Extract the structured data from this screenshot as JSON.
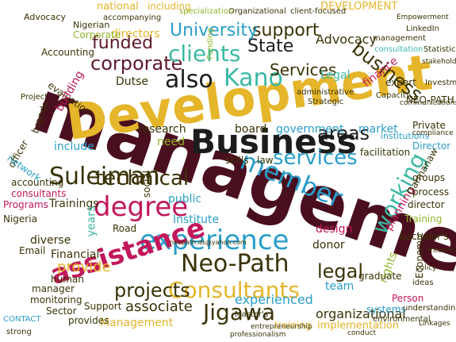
{
  "image": {
    "type": "word cloud",
    "palette": [
      "#e5b52a",
      "#3a3306",
      "#5e1a2a",
      "#c2185b",
      "#2a9ec9",
      "#3cb9a3",
      "#8fb32a",
      "#1c1c1c"
    ]
  },
  "words": [
    "management",
    "Development",
    "Business",
    "experience",
    "Neo-Path",
    "Consultants",
    "assistance",
    "member",
    "degree",
    "technical",
    "corporate",
    "Kano",
    "services",
    "State",
    "clients",
    "also",
    "Suleiman",
    "Jigawa",
    "projects",
    "working",
    "business",
    "legal",
    "areas",
    "support",
    "University",
    "funded",
    "Services",
    "directors",
    "Corporate",
    "national",
    "including",
    "DEVELOPMENT",
    "Advocacy",
    "finance",
    "Legal",
    "Dutse",
    "research",
    "board",
    "government",
    "market",
    "include",
    "need",
    "Institute",
    "accounting",
    "consultants",
    "Trainings",
    "provide",
    "associate",
    "Financial",
    "diverse",
    "years",
    "Management",
    "organizational",
    "implementation",
    "training",
    "team",
    "rights",
    "donor",
    "design",
    "planning",
    "graduate",
    "process",
    "Training",
    "director",
    "Director",
    "institutions",
    "groups",
    "facilitation",
    "Private",
    "Nigeria",
    "Email",
    "human",
    "Support",
    "provides",
    "Person",
    "systems",
    "manager",
    "monitoring",
    "Sector",
    "evaluation",
    "building",
    "brands",
    "officer",
    "network",
    "Accounting",
    "Programs",
    "social",
    "public",
    "Road",
    "skills",
    "law",
    "experienced",
    "bachelor's",
    "Economic",
    "NEO-PATH",
    "Darmanaw",
    "Advocacy",
    "Nigerian",
    "Organizational",
    "CONTACT",
    "specialization",
    "client-focused",
    "accompanying",
    "Funding",
    "environmental",
    "management",
    "consultation",
    "Statistics",
    "administrative",
    "Strategic",
    "Capacity",
    "Investment",
    "strong",
    "Project",
    "understanding",
    "LinkedIn",
    "Master's",
    "neopath.ds@yahoo.com",
    "entrepreneurship",
    "professionalism",
    "conduct",
    "expert",
    "ideas",
    "Empowerment",
    "Interior",
    "policy",
    "stakeholders",
    "compliance",
    "Linkages",
    "communications"
  ]
}
